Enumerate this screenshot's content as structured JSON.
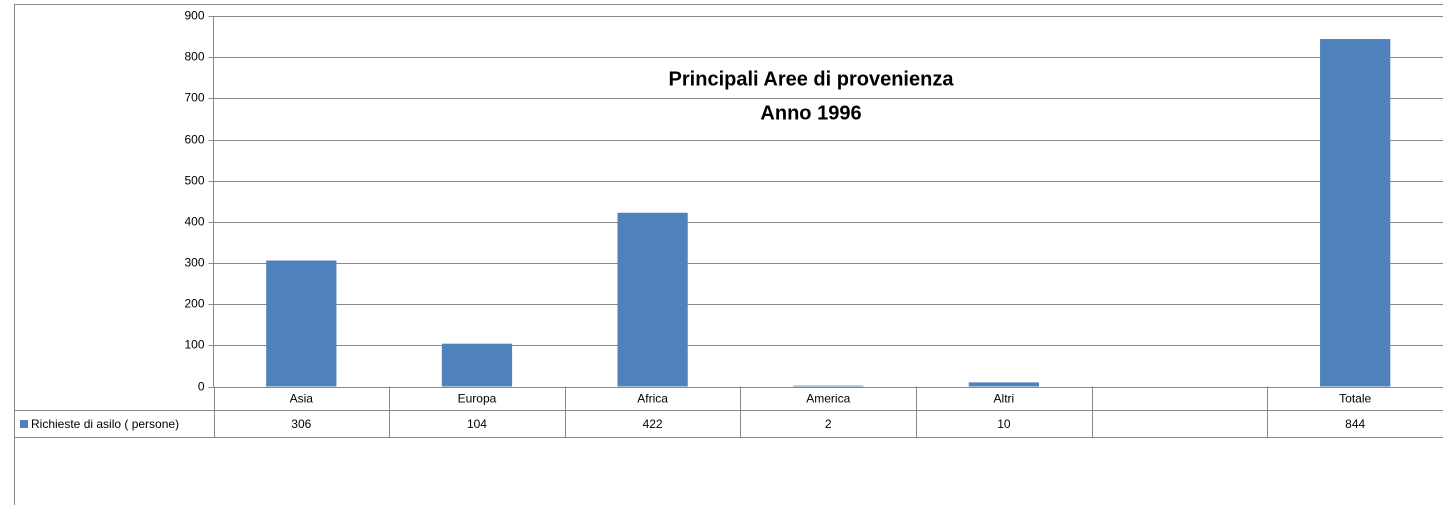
{
  "chart_data": {
    "type": "bar",
    "title": "Principali Aree di provenienza",
    "subtitle": "Anno 1996",
    "categories": [
      "Asia",
      "Europa",
      "Africa",
      "America",
      "Altri",
      null,
      "Totale"
    ],
    "series": [
      {
        "name": "Richieste di asilo ( persone)",
        "color": "#4f81bd",
        "values": [
          306,
          104,
          422,
          2,
          10,
          null,
          844
        ]
      }
    ],
    "ylim": [
      0,
      900
    ],
    "yticks": [
      0,
      100,
      200,
      300,
      400,
      500,
      600,
      700,
      800,
      900
    ],
    "grid": true,
    "data_table": true
  }
}
